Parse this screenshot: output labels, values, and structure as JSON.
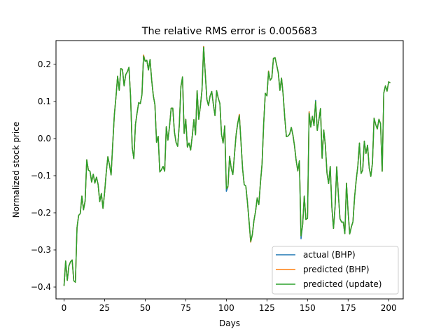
{
  "chart_data": {
    "type": "line",
    "title": "The relative RMS error is 0.005683",
    "xlabel": "Days",
    "ylabel": "Normalized stock price",
    "xlim": [
      -4.95,
      208.95
    ],
    "ylim": [
      -0.432,
      0.264
    ],
    "xticks": [
      0,
      25,
      50,
      75,
      100,
      125,
      150,
      175,
      200
    ],
    "yticks": [
      -0.4,
      -0.3,
      -0.2,
      -0.1,
      0.0,
      0.1,
      0.2
    ],
    "ytick_labels": [
      "−0.4",
      "−0.3",
      "−0.2",
      "−0.1",
      "0.0",
      "0.1",
      "0.2"
    ],
    "grid": false,
    "legend_position": "lower-right",
    "series": [
      {
        "name": "actual (BHP)",
        "color": "#1f77b4",
        "values": [
          -0.397,
          -0.33,
          -0.382,
          -0.343,
          -0.332,
          -0.327,
          -0.383,
          -0.387,
          -0.24,
          -0.207,
          -0.202,
          -0.155,
          -0.192,
          -0.168,
          -0.057,
          -0.085,
          -0.088,
          -0.117,
          -0.096,
          -0.12,
          -0.104,
          -0.124,
          -0.17,
          -0.148,
          -0.188,
          -0.145,
          -0.092,
          -0.049,
          -0.071,
          -0.098,
          -0.015,
          0.064,
          0.112,
          0.168,
          0.13,
          0.189,
          0.186,
          0.142,
          0.172,
          0.18,
          0.192,
          0.112,
          -0.024,
          -0.054,
          0.038,
          0.069,
          0.097,
          0.094,
          0.118,
          0.225,
          0.208,
          0.211,
          0.185,
          0.213,
          0.157,
          0.116,
          0.091,
          -0.01,
          0.006,
          -0.09,
          -0.084,
          -0.075,
          -0.088,
          0.032,
          -0.004,
          0.033,
          0.082,
          0.082,
          0.018,
          -0.01,
          -0.021,
          0.036,
          0.14,
          0.166,
          0.014,
          0.052,
          -0.023,
          -0.012,
          -0.031,
          0.007,
          0.051,
          0.01,
          0.129,
          0.052,
          0.087,
          0.131,
          0.248,
          0.176,
          0.106,
          0.089,
          0.115,
          0.127,
          0.092,
          0.062,
          0.129,
          0.109,
          0.095,
          0.012,
          -0.012,
          0.034,
          -0.142,
          -0.13,
          -0.048,
          -0.08,
          -0.097,
          -0.043,
          0.01,
          0.041,
          0.065,
          -0.008,
          -0.081,
          -0.124,
          -0.128,
          -0.172,
          -0.224,
          -0.279,
          -0.259,
          -0.221,
          -0.196,
          -0.16,
          -0.178,
          -0.119,
          -0.068,
          0.041,
          0.122,
          0.115,
          0.182,
          0.157,
          0.163,
          0.216,
          0.218,
          0.198,
          0.177,
          0.13,
          0.163,
          0.118,
          0.055,
          0.005,
          0.007,
          0.012,
          0.03,
          0.01,
          -0.02,
          -0.059,
          -0.087,
          -0.06,
          -0.27,
          -0.232,
          -0.155,
          -0.218,
          -0.215,
          0.072,
          0.031,
          0.06,
          0.035,
          0.103,
          0.022,
          0.05,
          0.081,
          -0.053,
          0.023,
          -0.018,
          -0.093,
          -0.121,
          -0.075,
          -0.185,
          -0.242,
          -0.183,
          -0.076,
          -0.15,
          -0.216,
          -0.225,
          -0.225,
          -0.256,
          -0.12,
          -0.197,
          -0.257,
          -0.238,
          -0.224,
          -0.158,
          -0.112,
          -0.074,
          -0.012,
          -0.094,
          -0.085,
          -0.007,
          -0.04,
          -0.018,
          -0.079,
          -0.102,
          -0.066,
          0.055,
          0.038,
          0.026,
          0.052,
          0.04,
          -0.088,
          0.123,
          0.142,
          0.128,
          0.153,
          0.15
        ]
      },
      {
        "name": "predicted (BHP)",
        "color": "#ff7f0e",
        "values": [
          -0.397,
          -0.33,
          -0.382,
          -0.343,
          -0.332,
          -0.327,
          -0.383,
          -0.387,
          -0.24,
          -0.207,
          -0.202,
          -0.155,
          -0.192,
          -0.168,
          -0.057,
          -0.085,
          -0.088,
          -0.117,
          -0.096,
          -0.12,
          -0.104,
          -0.124,
          -0.17,
          -0.148,
          -0.188,
          -0.145,
          -0.092,
          -0.049,
          -0.071,
          -0.098,
          -0.015,
          0.064,
          0.112,
          0.168,
          0.13,
          0.189,
          0.186,
          0.142,
          0.172,
          0.18,
          0.192,
          0.112,
          -0.024,
          -0.054,
          0.038,
          0.069,
          0.097,
          0.094,
          0.118,
          0.225,
          0.208,
          0.211,
          0.185,
          0.213,
          0.157,
          0.116,
          0.091,
          -0.01,
          0.006,
          -0.09,
          -0.084,
          -0.075,
          -0.088,
          0.032,
          -0.004,
          0.033,
          0.082,
          0.082,
          0.018,
          -0.01,
          -0.021,
          0.036,
          0.14,
          0.166,
          0.014,
          0.052,
          -0.023,
          -0.012,
          -0.031,
          0.007,
          0.051,
          0.01,
          0.129,
          0.052,
          0.087,
          0.131,
          0.248,
          0.176,
          0.106,
          0.089,
          0.115,
          0.127,
          0.092,
          0.062,
          0.129,
          0.109,
          0.095,
          0.012,
          -0.012,
          0.034,
          -0.135,
          -0.13,
          -0.048,
          -0.08,
          -0.097,
          -0.043,
          0.01,
          0.041,
          0.065,
          -0.008,
          -0.081,
          -0.124,
          -0.128,
          -0.172,
          -0.224,
          -0.279,
          -0.259,
          -0.221,
          -0.196,
          -0.16,
          -0.178,
          -0.119,
          -0.068,
          0.041,
          0.122,
          0.115,
          0.182,
          0.157,
          0.163,
          0.216,
          0.218,
          0.198,
          0.177,
          0.13,
          0.163,
          0.118,
          0.055,
          0.005,
          0.007,
          0.012,
          0.03,
          0.01,
          -0.02,
          -0.059,
          -0.087,
          -0.06,
          -0.262,
          -0.232,
          -0.155,
          -0.218,
          -0.215,
          0.072,
          0.031,
          0.06,
          0.035,
          0.1,
          0.022,
          0.05,
          0.081,
          -0.053,
          0.023,
          -0.018,
          -0.093,
          -0.121,
          -0.075,
          -0.185,
          -0.242,
          -0.183,
          -0.076,
          -0.15,
          -0.216,
          -0.225,
          -0.225,
          -0.256,
          -0.12,
          -0.197,
          -0.257,
          -0.238,
          -0.224,
          -0.158,
          -0.112,
          -0.074,
          -0.012,
          -0.094,
          -0.085,
          -0.007,
          -0.04,
          -0.018,
          -0.079,
          -0.102,
          -0.066,
          0.055,
          0.038,
          0.026,
          0.052,
          0.04,
          -0.088,
          0.123,
          0.142,
          0.128,
          0.153,
          0.15
        ]
      },
      {
        "name": "predicted (update)",
        "color": "#2ca02c",
        "values": [
          -0.397,
          -0.33,
          -0.382,
          -0.343,
          -0.332,
          -0.327,
          -0.383,
          -0.387,
          -0.24,
          -0.207,
          -0.202,
          -0.155,
          -0.192,
          -0.168,
          -0.057,
          -0.085,
          -0.088,
          -0.117,
          -0.096,
          -0.12,
          -0.104,
          -0.124,
          -0.17,
          -0.148,
          -0.188,
          -0.145,
          -0.092,
          -0.049,
          -0.071,
          -0.098,
          -0.015,
          0.064,
          0.112,
          0.168,
          0.13,
          0.189,
          0.186,
          0.142,
          0.172,
          0.18,
          0.192,
          0.112,
          -0.024,
          -0.054,
          0.038,
          0.069,
          0.097,
          0.094,
          0.118,
          0.222,
          0.208,
          0.211,
          0.185,
          0.213,
          0.157,
          0.116,
          0.091,
          -0.01,
          0.006,
          -0.09,
          -0.084,
          -0.075,
          -0.088,
          0.032,
          -0.004,
          0.033,
          0.082,
          0.082,
          0.018,
          -0.01,
          -0.021,
          0.036,
          0.14,
          0.166,
          0.014,
          0.052,
          -0.023,
          -0.012,
          -0.031,
          0.007,
          0.051,
          0.01,
          0.129,
          0.052,
          0.087,
          0.131,
          0.246,
          0.176,
          0.106,
          0.089,
          0.115,
          0.127,
          0.092,
          0.062,
          0.129,
          0.109,
          0.095,
          0.012,
          -0.012,
          0.034,
          -0.135,
          -0.128,
          -0.048,
          -0.08,
          -0.097,
          -0.043,
          0.01,
          0.041,
          0.062,
          -0.008,
          -0.081,
          -0.124,
          -0.128,
          -0.172,
          -0.224,
          -0.277,
          -0.259,
          -0.221,
          -0.196,
          -0.16,
          -0.178,
          -0.119,
          -0.068,
          0.041,
          0.122,
          0.115,
          0.18,
          0.157,
          0.163,
          0.216,
          0.218,
          0.198,
          0.177,
          0.13,
          0.163,
          0.118,
          0.055,
          0.005,
          0.007,
          0.012,
          0.03,
          0.01,
          -0.02,
          -0.059,
          -0.087,
          -0.06,
          -0.262,
          -0.232,
          -0.155,
          -0.218,
          -0.215,
          0.068,
          0.031,
          0.06,
          0.035,
          0.1,
          0.022,
          0.05,
          0.081,
          -0.053,
          0.023,
          -0.018,
          -0.093,
          -0.121,
          -0.075,
          -0.185,
          -0.242,
          -0.183,
          -0.076,
          -0.15,
          -0.216,
          -0.225,
          -0.225,
          -0.256,
          -0.12,
          -0.197,
          -0.257,
          -0.238,
          -0.224,
          -0.158,
          -0.112,
          -0.074,
          -0.012,
          -0.094,
          -0.085,
          -0.007,
          -0.04,
          -0.018,
          -0.079,
          -0.102,
          -0.066,
          0.055,
          0.038,
          0.026,
          0.052,
          0.04,
          -0.088,
          0.123,
          0.142,
          0.128,
          0.153,
          0.15
        ]
      }
    ]
  }
}
